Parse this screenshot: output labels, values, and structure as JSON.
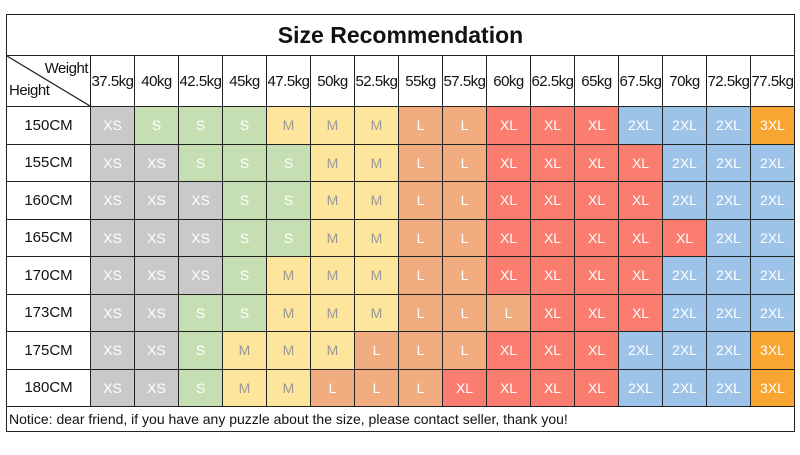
{
  "title": "Size Recommendation",
  "corner": {
    "weight_label": "Weight",
    "height_label": "Height"
  },
  "weights": [
    "37.5kg",
    "40kg",
    "42.5kg",
    "45kg",
    "47.5kg",
    "50kg",
    "52.5kg",
    "55kg",
    "57.5kg",
    "60kg",
    "62.5kg",
    "65kg",
    "67.5kg",
    "70kg",
    "72.5kg",
    "77.5kg"
  ],
  "size_colors": {
    "XS": "#c9c9c9",
    "S": "#c5dfb3",
    "M": "#fde59c",
    "L": "#f1ad80",
    "XL": "#fb7d6f",
    "2XL": "#9ec3e8",
    "3XL": "#f8a532"
  },
  "rows": [
    {
      "height": "150CM",
      "sizes": [
        "XS",
        "S",
        "S",
        "S",
        "M",
        "M",
        "M",
        "L",
        "L",
        "XL",
        "XL",
        "XL",
        "2XL",
        "2XL",
        "2XL",
        "3XL"
      ]
    },
    {
      "height": "155CM",
      "sizes": [
        "XS",
        "XS",
        "S",
        "S",
        "S",
        "M",
        "M",
        "L",
        "L",
        "XL",
        "XL",
        "XL",
        "XL",
        "2XL",
        "2XL",
        "2XL"
      ]
    },
    {
      "height": "160CM",
      "sizes": [
        "XS",
        "XS",
        "XS",
        "S",
        "S",
        "M",
        "M",
        "L",
        "L",
        "XL",
        "XL",
        "XL",
        "XL",
        "2XL",
        "2XL",
        "2XL"
      ]
    },
    {
      "height": "165CM",
      "sizes": [
        "XS",
        "XS",
        "XS",
        "S",
        "S",
        "M",
        "M",
        "L",
        "L",
        "XL",
        "XL",
        "XL",
        "XL",
        "XL",
        "2XL",
        "2XL"
      ]
    },
    {
      "height": "170CM",
      "sizes": [
        "XS",
        "XS",
        "XS",
        "S",
        "M",
        "M",
        "M",
        "L",
        "L",
        "XL",
        "XL",
        "XL",
        "XL",
        "2XL",
        "2XL",
        "2XL"
      ]
    },
    {
      "height": "173CM",
      "sizes": [
        "XS",
        "XS",
        "S",
        "S",
        "M",
        "M",
        "M",
        "L",
        "L",
        "L",
        "XL",
        "XL",
        "XL",
        "2XL",
        "2XL",
        "2XL"
      ]
    },
    {
      "height": "175CM",
      "sizes": [
        "XS",
        "XS",
        "S",
        "M",
        "M",
        "M",
        "L",
        "L",
        "L",
        "XL",
        "XL",
        "XL",
        "2XL",
        "2XL",
        "2XL",
        "3XL"
      ]
    },
    {
      "height": "180CM",
      "sizes": [
        "XS",
        "XS",
        "S",
        "M",
        "M",
        "L",
        "L",
        "L",
        "XL",
        "XL",
        "XL",
        "XL",
        "2XL",
        "2XL",
        "2XL",
        "3XL"
      ]
    }
  ],
  "notice": "Notice: dear friend, if you have any puzzle about the size, please contact seller, thank you!"
}
